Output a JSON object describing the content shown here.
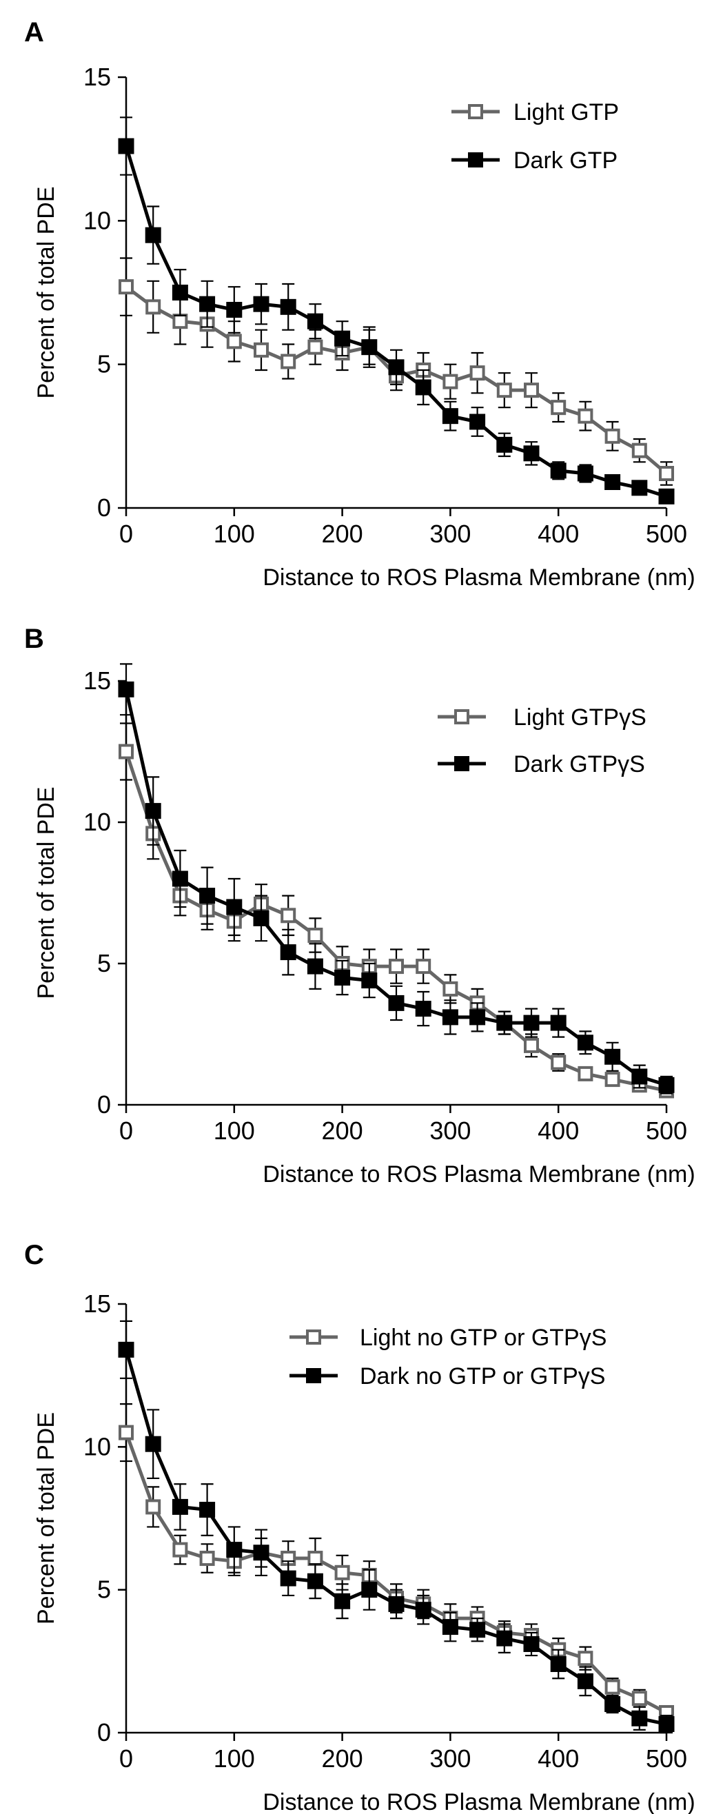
{
  "chart_data": [
    {
      "panel": "A",
      "type": "line",
      "xlabel": "Distance to ROS Plasma Membrane (nm)",
      "ylabel": "Percent of total PDE",
      "xlim": [
        0,
        500
      ],
      "ylim": [
        0,
        15
      ],
      "xticks": [
        "0",
        "100",
        "200",
        "300",
        "400",
        "500"
      ],
      "yticks": [
        "0",
        "5",
        "10",
        "15"
      ],
      "x": [
        0,
        25,
        50,
        75,
        100,
        125,
        150,
        175,
        200,
        225,
        250,
        275,
        300,
        325,
        350,
        375,
        400,
        425,
        450,
        475,
        500
      ],
      "series": [
        {
          "name": "Light GTP",
          "color": "#666666",
          "marker": "open-square",
          "values": [
            7.7,
            7.0,
            6.5,
            6.4,
            5.8,
            5.5,
            5.1,
            5.6,
            5.4,
            5.6,
            4.6,
            4.8,
            4.4,
            4.7,
            4.1,
            4.1,
            3.5,
            3.2,
            2.5,
            2.0,
            1.2
          ],
          "errors": [
            1.0,
            0.9,
            0.8,
            0.8,
            0.7,
            0.7,
            0.6,
            0.6,
            0.6,
            0.6,
            0.5,
            0.6,
            0.6,
            0.7,
            0.6,
            0.6,
            0.5,
            0.5,
            0.5,
            0.4,
            0.4
          ]
        },
        {
          "name": "Dark GTP",
          "color": "#000000",
          "marker": "filled-square",
          "values": [
            12.6,
            9.5,
            7.5,
            7.1,
            6.9,
            7.1,
            7.0,
            6.5,
            5.9,
            5.6,
            4.9,
            4.2,
            3.2,
            3.0,
            2.2,
            1.9,
            1.3,
            1.2,
            0.9,
            0.7,
            0.4
          ],
          "errors": [
            1.0,
            1.0,
            0.8,
            0.8,
            0.8,
            0.7,
            0.8,
            0.6,
            0.6,
            0.7,
            0.6,
            0.6,
            0.5,
            0.5,
            0.4,
            0.4,
            0.3,
            0.3,
            0.2,
            0.2,
            0.2
          ]
        }
      ]
    },
    {
      "panel": "B",
      "type": "line",
      "xlabel": "Distance to ROS Plasma Membrane (nm)",
      "ylabel": "Percent of total PDE",
      "xlim": [
        0,
        500
      ],
      "ylim": [
        0,
        15
      ],
      "xticks": [
        "0",
        "100",
        "200",
        "300",
        "400",
        "500"
      ],
      "yticks": [
        "0",
        "5",
        "10",
        "15"
      ],
      "x": [
        0,
        25,
        50,
        75,
        100,
        125,
        150,
        175,
        200,
        225,
        250,
        275,
        300,
        325,
        350,
        375,
        400,
        425,
        450,
        475,
        500
      ],
      "series": [
        {
          "name": "Light GTPγS",
          "color": "#666666",
          "marker": "open-square",
          "values": [
            12.5,
            9.6,
            7.4,
            6.9,
            6.5,
            7.1,
            6.7,
            6.0,
            5.0,
            4.9,
            4.9,
            4.9,
            4.1,
            3.6,
            2.9,
            2.1,
            1.5,
            1.1,
            0.9,
            0.7,
            0.5
          ],
          "errors": [
            1.0,
            0.9,
            0.7,
            0.7,
            0.7,
            0.7,
            0.7,
            0.6,
            0.6,
            0.6,
            0.6,
            0.6,
            0.5,
            0.5,
            0.4,
            0.4,
            0.3,
            0.2,
            0.2,
            0.2,
            0.2
          ]
        },
        {
          "name": "Dark GTPγS",
          "color": "#000000",
          "marker": "filled-square",
          "values": [
            14.7,
            10.4,
            8.0,
            7.4,
            7.0,
            6.6,
            5.4,
            4.9,
            4.5,
            4.4,
            3.6,
            3.4,
            3.1,
            3.1,
            2.9,
            2.9,
            2.9,
            2.2,
            1.7,
            1.0,
            0.7
          ],
          "errors": [
            0.9,
            1.2,
            1.0,
            1.0,
            1.0,
            0.8,
            0.8,
            0.8,
            0.6,
            0.6,
            0.6,
            0.6,
            0.6,
            0.5,
            0.4,
            0.5,
            0.5,
            0.4,
            0.5,
            0.4,
            0.3
          ]
        }
      ]
    },
    {
      "panel": "C",
      "type": "line",
      "xlabel": "Distance to ROS Plasma Membrane (nm)",
      "ylabel": "Percent of total PDE",
      "xlim": [
        0,
        500
      ],
      "ylim": [
        0,
        15
      ],
      "xticks": [
        "0",
        "100",
        "200",
        "300",
        "400",
        "500"
      ],
      "yticks": [
        "0",
        "5",
        "10",
        "15"
      ],
      "x": [
        0,
        25,
        50,
        75,
        100,
        125,
        150,
        175,
        200,
        225,
        250,
        275,
        300,
        325,
        350,
        375,
        400,
        425,
        450,
        475,
        500
      ],
      "series": [
        {
          "name": "Light no GTP or GTPγS",
          "color": "#666666",
          "marker": "open-square",
          "values": [
            10.5,
            7.9,
            6.4,
            6.1,
            6.0,
            6.3,
            6.1,
            6.1,
            5.6,
            5.5,
            4.7,
            4.5,
            4.0,
            4.0,
            3.5,
            3.4,
            2.9,
            2.6,
            1.6,
            1.2,
            0.7
          ],
          "errors": [
            1.0,
            0.7,
            0.5,
            0.5,
            0.5,
            0.5,
            0.6,
            0.7,
            0.6,
            0.5,
            0.5,
            0.5,
            0.5,
            0.4,
            0.4,
            0.4,
            0.4,
            0.4,
            0.3,
            0.3,
            0.2
          ]
        },
        {
          "name": "Dark no GTP or GTPγS",
          "color": "#000000",
          "marker": "filled-square",
          "values": [
            13.4,
            10.1,
            7.9,
            7.8,
            6.4,
            6.3,
            5.4,
            5.3,
            4.6,
            5.0,
            4.5,
            4.3,
            3.7,
            3.6,
            3.3,
            3.1,
            2.4,
            1.8,
            1.0,
            0.5,
            0.3
          ],
          "errors": [
            1.0,
            1.2,
            0.8,
            0.9,
            0.8,
            0.8,
            0.6,
            0.6,
            0.6,
            0.7,
            0.5,
            0.5,
            0.5,
            0.4,
            0.5,
            0.4,
            0.5,
            0.5,
            0.3,
            0.4,
            0.3
          ]
        }
      ]
    }
  ]
}
